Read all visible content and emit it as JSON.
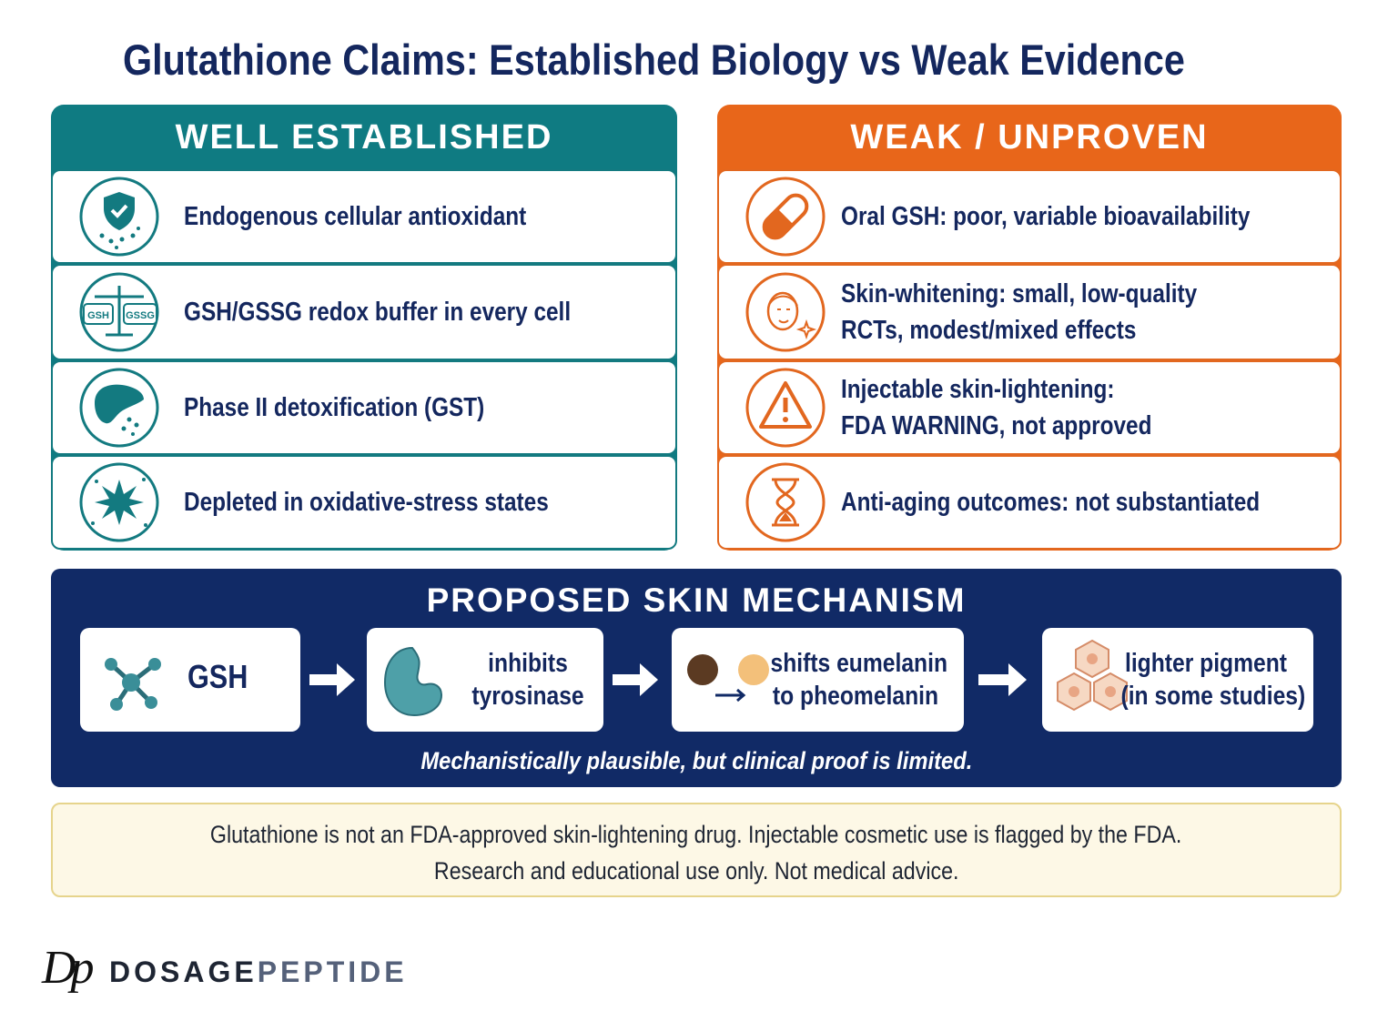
{
  "header": {
    "title": "Glutathione Claims: Established Biology vs Weak Evidence"
  },
  "established": {
    "heading": "WELL ESTABLISHED",
    "items": [
      {
        "lines": [
          "Endogenous cellular antioxidant"
        ]
      },
      {
        "lines": [
          "GSH/GSSG redox buffer in every cell"
        ],
        "icon_labels": [
          "GSH",
          "GSSG"
        ]
      },
      {
        "lines": [
          "Phase II detoxification (GST)"
        ]
      },
      {
        "lines": [
          "Depleted in oxidative-stress states"
        ]
      }
    ]
  },
  "weak": {
    "heading": "WEAK / UNPROVEN",
    "items": [
      {
        "lines": [
          "Oral GSH: poor, variable bioavailability"
        ]
      },
      {
        "lines": [
          "Skin-whitening: small, low-quality",
          "RCTs, modest/mixed effects"
        ]
      },
      {
        "lines": [
          "Injectable skin-lightening:",
          "FDA WARNING, not approved"
        ]
      },
      {
        "lines": [
          "Anti-aging outcomes: not substantiated"
        ]
      }
    ]
  },
  "mechanism": {
    "heading": "PROPOSED SKIN MECHANISM",
    "steps": [
      {
        "lines": [
          "GSH"
        ]
      },
      {
        "lines": [
          "inhibits",
          "tyrosinase"
        ]
      },
      {
        "lines": [
          "shifts eumelanin",
          "to pheomelanin"
        ]
      },
      {
        "lines": [
          "lighter pigment",
          "(in some studies)"
        ]
      }
    ],
    "caption": "Mechanistically plausible, but clinical proof is limited."
  },
  "disclaimer": {
    "lines": [
      "Glutathione is not an FDA-approved skin-lightening drug. Injectable cosmetic use is flagged by the FDA.",
      "Research and educational use only. Not medical advice."
    ]
  },
  "brand": {
    "monogram": "Dp",
    "name_dark": "DOSAGE",
    "name_light": "PEPTIDE"
  }
}
